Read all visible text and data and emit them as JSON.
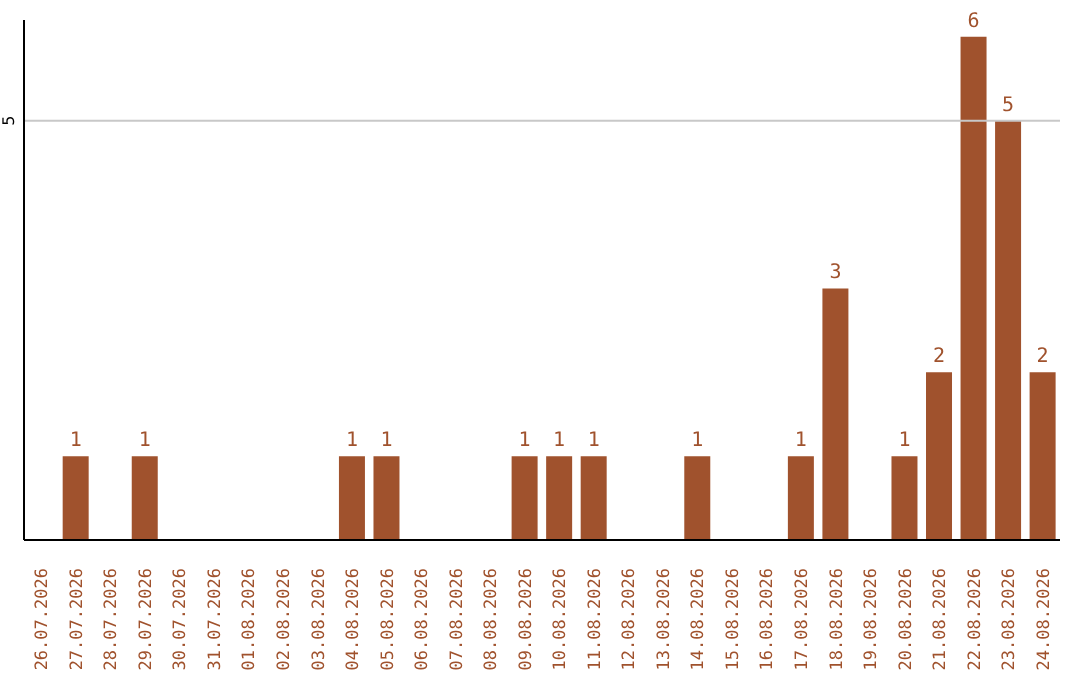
{
  "chart_data": {
    "type": "bar",
    "categories": [
      "26.07.2026",
      "27.07.2026",
      "28.07.2026",
      "29.07.2026",
      "30.07.2026",
      "31.07.2026",
      "01.08.2026",
      "02.08.2026",
      "03.08.2026",
      "04.08.2026",
      "05.08.2026",
      "06.08.2026",
      "07.08.2026",
      "08.08.2026",
      "09.08.2026",
      "10.08.2026",
      "11.08.2026",
      "12.08.2026",
      "13.08.2026",
      "14.08.2026",
      "15.08.2026",
      "16.08.2026",
      "17.08.2026",
      "18.08.2026",
      "19.08.2026",
      "20.08.2026",
      "21.08.2026",
      "22.08.2026",
      "23.08.2026",
      "24.08.2026"
    ],
    "values": [
      0,
      1,
      0,
      1,
      0,
      0,
      0,
      0,
      0,
      1,
      1,
      0,
      0,
      0,
      1,
      1,
      1,
      0,
      0,
      1,
      0,
      0,
      1,
      3,
      0,
      1,
      2,
      6,
      5,
      2
    ],
    "value_labels": [
      null,
      "1",
      null,
      "1",
      null,
      null,
      null,
      null,
      null,
      "1",
      "1",
      null,
      null,
      null,
      "1",
      "1",
      "1",
      null,
      null,
      "1",
      null,
      null,
      "1",
      "3",
      null,
      "1",
      "2",
      "6",
      "5",
      "2"
    ],
    "color": "#a0522d",
    "ylim": [
      0,
      6.2
    ],
    "yticks": [
      5
    ],
    "grid": "y"
  }
}
